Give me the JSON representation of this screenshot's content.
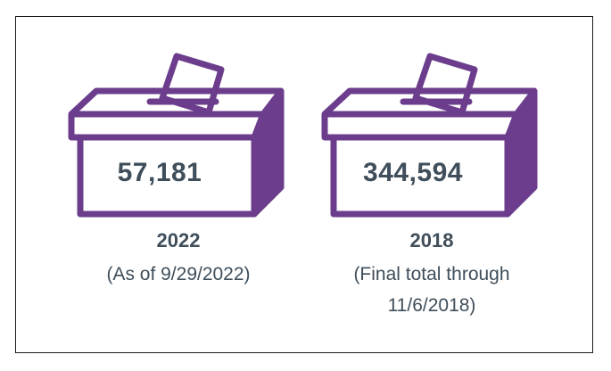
{
  "colors": {
    "box_purple": "#6b3d8c",
    "text": "#3f4e5a",
    "border": "#1a1a1a"
  },
  "icons": {
    "ballot_box": "ballot-box-icon"
  },
  "cards": [
    {
      "value": "57,181",
      "year": "2022",
      "note_line1": "(As of 9/29/2022)",
      "note_line2": ""
    },
    {
      "value": "344,594",
      "year": "2018",
      "note_line1": "(Final total through",
      "note_line2": "11/6/2018)"
    }
  ]
}
